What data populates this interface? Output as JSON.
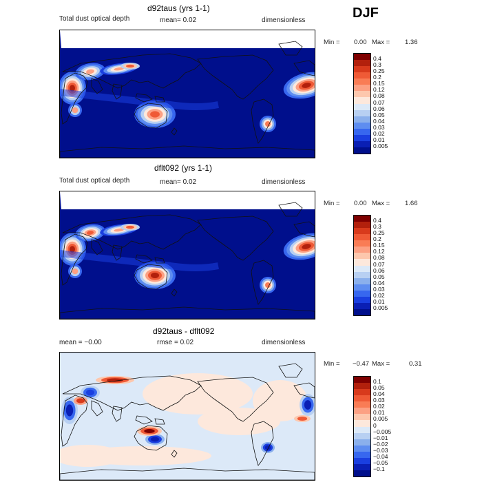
{
  "season": "DJF",
  "panels": [
    {
      "id": "p1",
      "title": "d92taus (yrs 1-1)",
      "left_label": "Total dust optical depth",
      "mid_label": "mean=     0.02",
      "right_label": "dimensionless",
      "min_label": "Min =",
      "min_value": "0.00",
      "max_label": "Max =",
      "max_value": "1.36",
      "field_type": "dust_a",
      "colorbar": {
        "labels": [
          "0.4",
          "0.3",
          "0.25",
          "0.2",
          "0.15",
          "0.12",
          "0.08",
          "0.07",
          "0.06",
          "0.05",
          "0.04",
          "0.03",
          "0.02",
          "0.01",
          "0.005"
        ],
        "colors": [
          "#7f0000",
          "#b2200c",
          "#d83a1c",
          "#ef5a36",
          "#f97c55",
          "#fca083",
          "#fdc7ad",
          "#fde8dc",
          "#dce9f8",
          "#b8d0f2",
          "#8bb0ec",
          "#5e8df0",
          "#3767ef",
          "#1a3fe0",
          "#0a1fb4",
          "#000f8c"
        ]
      }
    },
    {
      "id": "p2",
      "title": "dflt092 (yrs 1-1)",
      "left_label": "Total dust optical depth",
      "mid_label": "mean=     0.02",
      "right_label": "dimensionless",
      "min_label": "Min =",
      "min_value": "0.00",
      "max_label": "Max =",
      "max_value": "1.66",
      "field_type": "dust_b",
      "colorbar": {
        "labels": [
          "0.4",
          "0.3",
          "0.25",
          "0.2",
          "0.15",
          "0.12",
          "0.08",
          "0.07",
          "0.06",
          "0.05",
          "0.04",
          "0.03",
          "0.02",
          "0.01",
          "0.005"
        ],
        "colors": [
          "#7f0000",
          "#b2200c",
          "#d83a1c",
          "#ef5a36",
          "#f97c55",
          "#fca083",
          "#fdc7ad",
          "#fde8dc",
          "#dce9f8",
          "#b8d0f2",
          "#8bb0ec",
          "#5e8df0",
          "#3767ef",
          "#1a3fe0",
          "#0a1fb4",
          "#000f8c"
        ]
      }
    },
    {
      "id": "p3",
      "title": "d92taus - dflt092",
      "left_label": "mean =    −0.00",
      "mid_label": "rmse =     0.02",
      "right_label": "dimensionless",
      "min_label": "Min =",
      "min_value": "−0.47",
      "max_label": "Max =",
      "max_value": "0.31",
      "field_type": "diff",
      "colorbar": {
        "labels": [
          "0.1",
          "0.05",
          "0.04",
          "0.03",
          "0.02",
          "0.01",
          "0.005",
          "0",
          "−0.005",
          "−0.01",
          "−0.02",
          "−0.03",
          "−0.04",
          "−0.05",
          "−0.1"
        ],
        "colors": [
          "#7f0000",
          "#b2200c",
          "#d83a1c",
          "#ef5a36",
          "#f97c55",
          "#fca083",
          "#fdc7ad",
          "#fde8dc",
          "#dce9f8",
          "#b8d0f2",
          "#8bb0ec",
          "#5e8df0",
          "#3767ef",
          "#1a3fe0",
          "#0a1fb4",
          "#000f8c"
        ]
      }
    }
  ]
}
